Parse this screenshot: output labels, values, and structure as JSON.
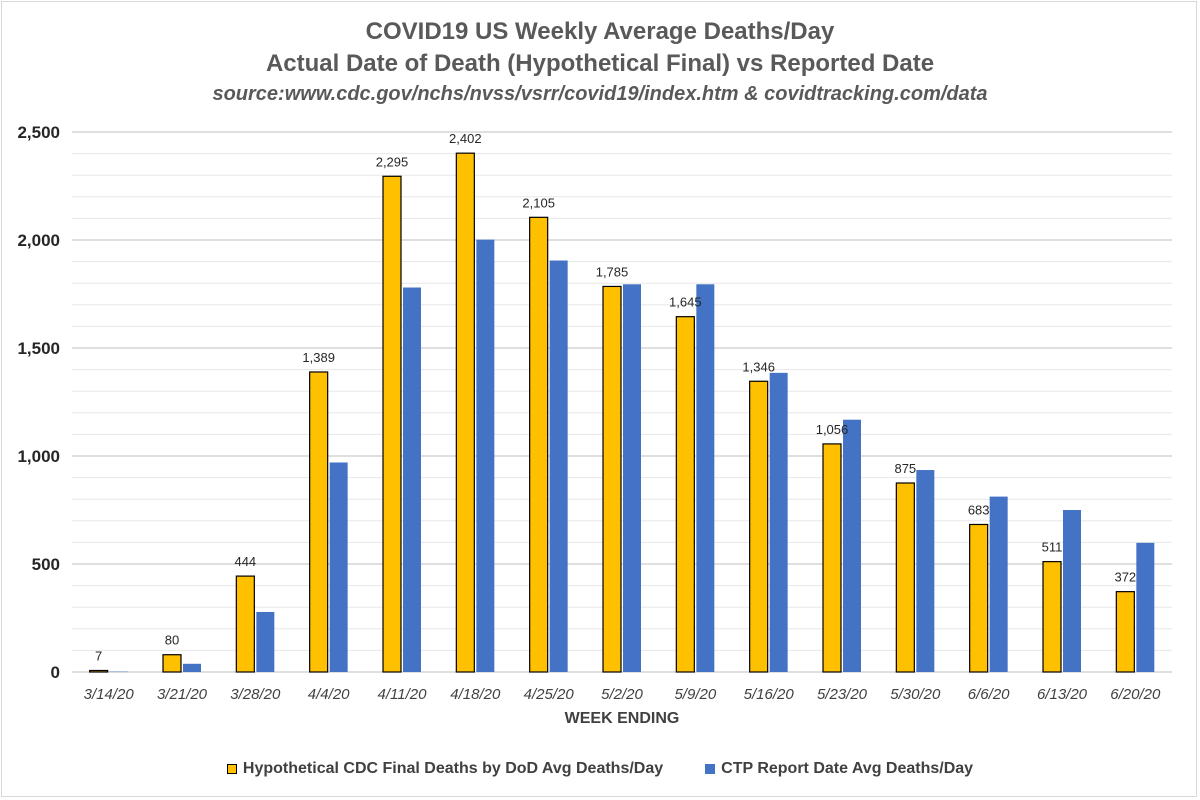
{
  "chart_data": {
    "type": "bar",
    "title": "COVID19 US Weekly Average Deaths/Day",
    "subtitle": "Actual Date of Death (Hypothetical Final) vs Reported Date",
    "source": "source:www.cdc.gov/nchs/nvss/vsrr/covid19/index.htm & covidtracking.com/data",
    "xlabel": "WEEK ENDING",
    "ylabel": "",
    "ylim": [
      0,
      2500
    ],
    "yticks": [
      0,
      500,
      1000,
      1500,
      2000,
      2500
    ],
    "ytick_labels": [
      "0",
      "500",
      "1,000",
      "1,500",
      "2,000",
      "2,500"
    ],
    "grid": true,
    "legend_position": "bottom",
    "categories": [
      "3/14/20",
      "3/21/20",
      "3/28/20",
      "4/4/20",
      "4/11/20",
      "4/18/20",
      "4/25/20",
      "5/2/20",
      "5/9/20",
      "5/16/20",
      "5/23/20",
      "5/30/20",
      "6/6/20",
      "6/13/20",
      "6/20/20"
    ],
    "series": [
      {
        "name": "Hypothetical CDC Final Deaths by DoD Avg Deaths/Day",
        "color": "#ffc000",
        "values": [
          7,
          80,
          444,
          1389,
          2295,
          2402,
          2105,
          1785,
          1645,
          1346,
          1056,
          875,
          683,
          511,
          372
        ],
        "data_labels": [
          "7",
          "80",
          "444",
          "1,389",
          "2,295",
          "2,402",
          "2,105",
          "1,785",
          "1,645",
          "1,346",
          "1,056",
          "875",
          "683",
          "511",
          "372"
        ]
      },
      {
        "name": "CTP Report Date Avg Deaths/Day",
        "color": "#4472c4",
        "values": [
          2,
          38,
          278,
          970,
          1780,
          2002,
          1905,
          1795,
          1795,
          1385,
          1168,
          935,
          812,
          750,
          598
        ]
      }
    ]
  }
}
